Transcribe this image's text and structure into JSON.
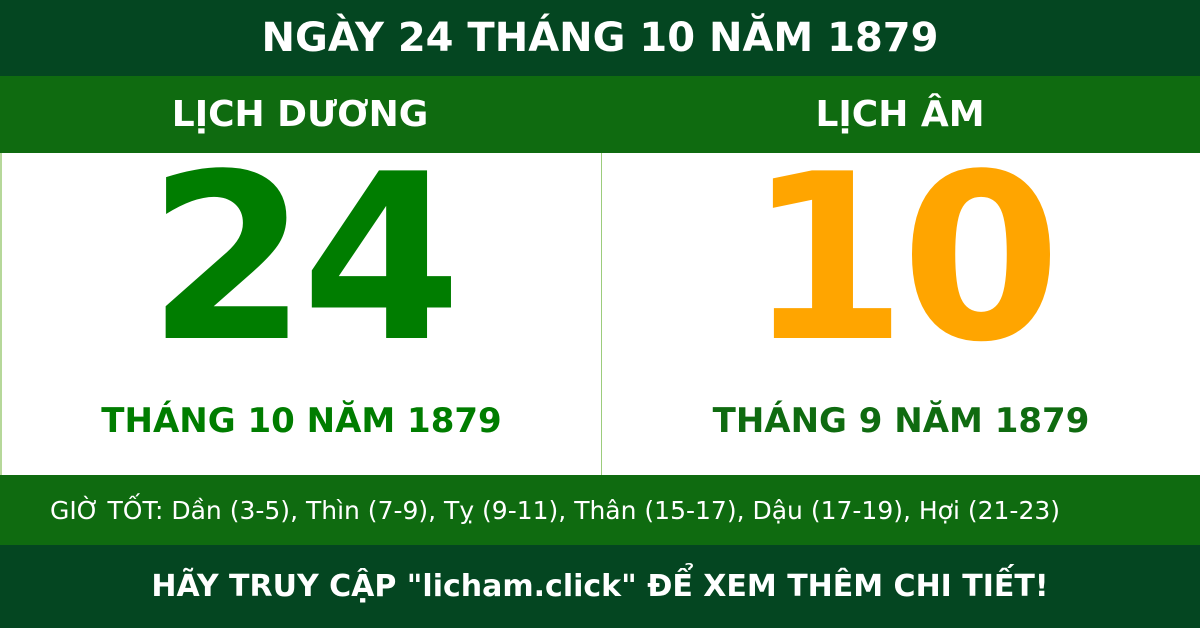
{
  "title": "NGÀY 24 THÁNG 10 NĂM 1879",
  "solar": {
    "label": "LỊCH DƯƠNG",
    "day": "24",
    "month_year": "THÁNG 10 NĂM 1879"
  },
  "lunar": {
    "label": "LỊCH ÂM",
    "day": "10",
    "month_year": "THÁNG 9 NĂM 1879"
  },
  "good_hours": "GIỜ TỐT: Dần (3-5), Thìn (7-9), Tỵ (9-11), Thân (15-17), Dậu (17-19), Hợi (21-23)",
  "footer": "HÃY TRUY CẬP \"licham.click\" ĐỂ XEM THÊM CHI TIẾT!",
  "colors": {
    "dark_green": "#044621",
    "green": "#0f6b10",
    "solar_day": "#007d00",
    "lunar_day": "#ffa500"
  }
}
